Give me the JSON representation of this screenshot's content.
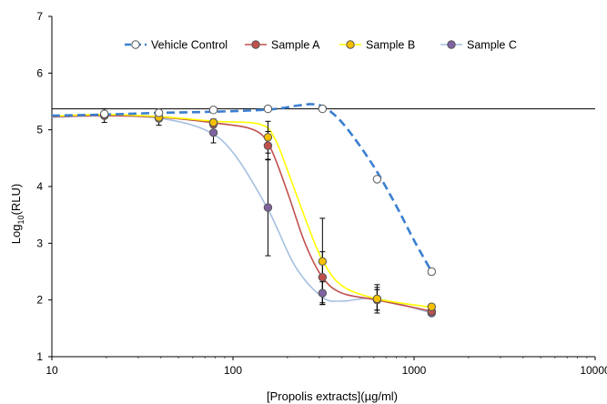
{
  "chart_data": {
    "type": "line",
    "title": "",
    "xlabel": "[Propolis extracts](µg/ml)",
    "ylabel_main": "Log",
    "ylabel_sub": "10",
    "ylabel_rest": "(RLU)",
    "x_scale": "log",
    "xlim": [
      10,
      10000
    ],
    "ylim": [
      1,
      7
    ],
    "x_ticks": [
      10,
      100,
      1000,
      10000
    ],
    "x_tick_labels": [
      "10",
      "100",
      "1000",
      "10000"
    ],
    "y_ticks": [
      1,
      2,
      3,
      4,
      5,
      6,
      7
    ],
    "y_tick_labels": [
      "1",
      "2",
      "3",
      "4",
      "5",
      "6",
      "7"
    ],
    "grid": false,
    "legend_position": "top",
    "reference_line_y": 5.37,
    "series": [
      {
        "name": "Vehicle Control",
        "color": "#3b7fd0",
        "marker_fill": "#ffffff",
        "marker_stroke": "#555555",
        "line_style": "dashed",
        "x": [
          10,
          19.5,
          39,
          78,
          156,
          312,
          625,
          1250
        ],
        "y": [
          5.25,
          5.28,
          5.3,
          5.35,
          5.37,
          5.37,
          4.13,
          2.5
        ],
        "err": [
          0,
          0.02,
          0.02,
          0.03,
          0.02,
          0,
          0,
          0
        ],
        "curve": [
          [
            10,
            5.25
          ],
          [
            20,
            5.27
          ],
          [
            40,
            5.3
          ],
          [
            80,
            5.32
          ],
          [
            160,
            5.36
          ],
          [
            230,
            5.43
          ],
          [
            280,
            5.45
          ],
          [
            330,
            5.37
          ],
          [
            420,
            5.05
          ],
          [
            600,
            4.35
          ],
          [
            800,
            3.65
          ],
          [
            1000,
            3.05
          ],
          [
            1250,
            2.5
          ]
        ]
      },
      {
        "name": "Sample A",
        "color": "#c0504d",
        "marker_fill": "#c0504d",
        "marker_stroke": "#555555",
        "line_style": "solid",
        "x": [
          19.5,
          39,
          78,
          156,
          312,
          625,
          1250
        ],
        "y": [
          5.25,
          5.22,
          5.1,
          4.72,
          2.4,
          2.0,
          1.8
        ],
        "err": [
          0.05,
          0.05,
          0.06,
          0.25,
          0.45,
          0.18,
          0.05
        ],
        "curve": [
          [
            10,
            5.23
          ],
          [
            20,
            5.25
          ],
          [
            40,
            5.22
          ],
          [
            80,
            5.12
          ],
          [
            130,
            5.0
          ],
          [
            160,
            4.7
          ],
          [
            200,
            3.9
          ],
          [
            250,
            3.0
          ],
          [
            312,
            2.4
          ],
          [
            400,
            2.12
          ],
          [
            625,
            2.0
          ],
          [
            1250,
            1.8
          ]
        ]
      },
      {
        "name": "Sample B",
        "color": "#ffff00",
        "marker_fill": "#f5c000",
        "marker_stroke": "#555555",
        "line_style": "solid",
        "x": [
          19.5,
          39,
          78,
          156,
          312,
          625,
          1250
        ],
        "y": [
          5.27,
          5.22,
          5.13,
          4.87,
          2.68,
          2.02,
          1.88
        ],
        "err": [
          0.05,
          0.05,
          0.06,
          0.28,
          0.76,
          0.2,
          0.05
        ],
        "curve": [
          [
            10,
            5.24
          ],
          [
            20,
            5.27
          ],
          [
            40,
            5.23
          ],
          [
            80,
            5.15
          ],
          [
            140,
            5.1
          ],
          [
            170,
            4.85
          ],
          [
            210,
            4.1
          ],
          [
            260,
            3.3
          ],
          [
            312,
            2.7
          ],
          [
            400,
            2.25
          ],
          [
            625,
            2.02
          ],
          [
            1250,
            1.87
          ]
        ]
      },
      {
        "name": "Sample C",
        "color": "#a6c0e0",
        "marker_fill": "#8064a2",
        "marker_stroke": "#555555",
        "line_style": "solid",
        "x": [
          19.5,
          39,
          78,
          156,
          312,
          625,
          1250
        ],
        "y": [
          5.25,
          5.2,
          4.95,
          3.63,
          2.12,
          2.02,
          1.77
        ],
        "err": [
          0.12,
          0.12,
          0.18,
          0.85,
          0.2,
          0.25,
          0.05
        ],
        "curve": [
          [
            10,
            5.22
          ],
          [
            20,
            5.25
          ],
          [
            40,
            5.2
          ],
          [
            70,
            5.0
          ],
          [
            100,
            4.6
          ],
          [
            156,
            3.6
          ],
          [
            220,
            2.6
          ],
          [
            312,
            2.05
          ],
          [
            400,
            1.98
          ],
          [
            625,
            2.02
          ],
          [
            1250,
            1.77
          ]
        ]
      }
    ]
  }
}
